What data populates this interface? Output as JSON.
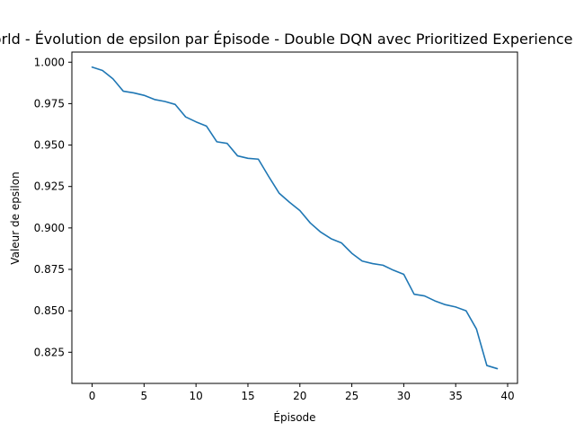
{
  "chart_data": {
    "type": "line",
    "title": "GridWorld - Évolution de epsilon par Épisode - Double DQN avec Prioritized Experience Replay",
    "xlabel": "Épisode",
    "ylabel": "Valeur de epsilon",
    "xlim": [
      -1.95,
      40.95
    ],
    "ylim": [
      0.8062,
      1.0061
    ],
    "xticks": [
      0,
      5,
      10,
      15,
      20,
      25,
      30,
      35,
      40
    ],
    "xtick_labels": [
      "0",
      "5",
      "10",
      "15",
      "20",
      "25",
      "30",
      "35",
      "40"
    ],
    "yticks": [
      0.825,
      0.85,
      0.875,
      0.9,
      0.925,
      0.95,
      0.975,
      1.0
    ],
    "ytick_labels": [
      "0.825",
      "0.850",
      "0.875",
      "0.900",
      "0.925",
      "0.950",
      "0.975",
      "1.000"
    ],
    "grid": false,
    "series": [
      {
        "color": "#1f77b4",
        "x": [
          0,
          1,
          2,
          3,
          4,
          5,
          6,
          7,
          8,
          9,
          10,
          11,
          12,
          13,
          14,
          15,
          16,
          17,
          18,
          19,
          20,
          21,
          22,
          23,
          24,
          25,
          26,
          27,
          28,
          29,
          30,
          31,
          32,
          33,
          34,
          35,
          36,
          37,
          38,
          39
        ],
        "y": [
          0.997,
          0.995,
          0.99,
          0.9825,
          0.9815,
          0.98,
          0.9775,
          0.9763,
          0.9745,
          0.967,
          0.964,
          0.9615,
          0.952,
          0.951,
          0.9435,
          0.942,
          0.9415,
          0.931,
          0.921,
          0.9155,
          0.9105,
          0.903,
          0.8975,
          0.8935,
          0.891,
          0.8847,
          0.88,
          0.8785,
          0.8775,
          0.8745,
          0.872,
          0.86,
          0.859,
          0.856,
          0.8537,
          0.8523,
          0.85,
          0.839,
          0.817,
          0.8151
        ]
      }
    ]
  }
}
